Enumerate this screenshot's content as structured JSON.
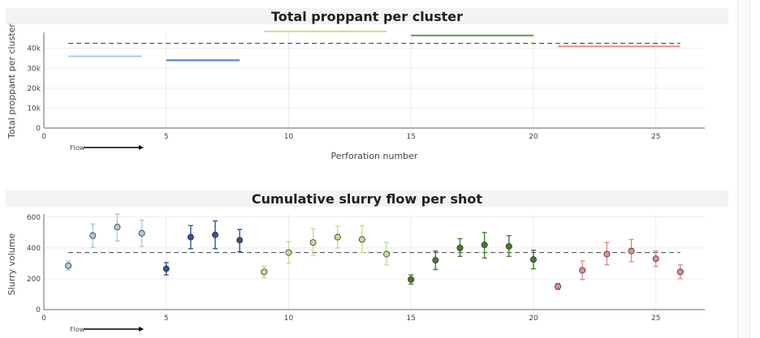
{
  "chart_data": [
    {
      "type": "line",
      "title": "Total proppant per cluster",
      "xlabel": "Perforation number",
      "ylabel": "Total proppant per cluster",
      "xlim": [
        0,
        27
      ],
      "ylim": [
        0,
        48000
      ],
      "xticks": [
        0,
        5,
        10,
        15,
        20,
        25
      ],
      "xtick_labels": [
        "0",
        "5",
        "10",
        "15",
        "20",
        "25"
      ],
      "yticks": [
        0,
        10000,
        20000,
        30000,
        40000
      ],
      "ytick_labels": [
        "0",
        "10k",
        "20k",
        "30k",
        "40k"
      ],
      "reference_line": 42500,
      "flow_label": "Flow",
      "series": [
        {
          "x": [
            1,
            4
          ],
          "values": [
            36000,
            36000
          ],
          "color": "#a8cbe0"
        },
        {
          "x": [
            5,
            8
          ],
          "values": [
            34000,
            34000
          ],
          "color": "#4a78c4"
        },
        {
          "x": [
            9,
            14
          ],
          "values": [
            48500,
            48500
          ],
          "color": "#c2de96"
        },
        {
          "x": [
            15,
            20
          ],
          "values": [
            46500,
            46500
          ],
          "color": "#5aa03c"
        },
        {
          "x": [
            21,
            26
          ],
          "values": [
            41000,
            41000
          ],
          "color": "#e08d8d"
        }
      ],
      "grid": true
    },
    {
      "type": "scatter",
      "title": "Cumulative slurry flow per shot",
      "xlabel": "",
      "ylabel": "Slurry volume",
      "xlim": [
        0,
        27
      ],
      "ylim": [
        0,
        620
      ],
      "xticks": [
        0,
        5,
        10,
        15,
        20,
        25
      ],
      "xtick_labels": [
        "0",
        "5",
        "10",
        "15",
        "20",
        "25"
      ],
      "yticks": [
        0,
        200,
        400,
        600
      ],
      "ytick_labels": [
        "0",
        "200",
        "400",
        "600"
      ],
      "reference_line": 370,
      "flow_label": "Flow",
      "points": [
        {
          "x": 1,
          "y": 285,
          "low": 255,
          "high": 315,
          "color": "#a8cbe0"
        },
        {
          "x": 2,
          "y": 480,
          "low": 405,
          "high": 555,
          "color": "#a8cbe0"
        },
        {
          "x": 3,
          "y": 535,
          "low": 445,
          "high": 620,
          "color": "#a8cbe0"
        },
        {
          "x": 4,
          "y": 495,
          "low": 410,
          "high": 580,
          "color": "#a8cbe0"
        },
        {
          "x": 5,
          "y": 265,
          "low": 225,
          "high": 305,
          "color": "#2f5597"
        },
        {
          "x": 6,
          "y": 470,
          "low": 395,
          "high": 545,
          "color": "#2f5597"
        },
        {
          "x": 7,
          "y": 485,
          "low": 395,
          "high": 575,
          "color": "#2f5597"
        },
        {
          "x": 8,
          "y": 450,
          "low": 375,
          "high": 520,
          "color": "#2f5597"
        },
        {
          "x": 9,
          "y": 245,
          "low": 210,
          "high": 280,
          "color": "#c2de96"
        },
        {
          "x": 10,
          "y": 370,
          "low": 300,
          "high": 440,
          "color": "#c2de96"
        },
        {
          "x": 11,
          "y": 435,
          "low": 350,
          "high": 525,
          "color": "#c2de96"
        },
        {
          "x": 12,
          "y": 470,
          "low": 400,
          "high": 540,
          "color": "#c2de96"
        },
        {
          "x": 13,
          "y": 455,
          "low": 370,
          "high": 545,
          "color": "#c2de96"
        },
        {
          "x": 14,
          "y": 360,
          "low": 290,
          "high": 435,
          "color": "#c2de96"
        },
        {
          "x": 15,
          "y": 195,
          "low": 165,
          "high": 225,
          "color": "#3f7f2c"
        },
        {
          "x": 16,
          "y": 320,
          "low": 260,
          "high": 380,
          "color": "#3f7f2c"
        },
        {
          "x": 17,
          "y": 400,
          "low": 345,
          "high": 460,
          "color": "#3f7f2c"
        },
        {
          "x": 18,
          "y": 420,
          "low": 335,
          "high": 500,
          "color": "#3f7f2c"
        },
        {
          "x": 19,
          "y": 410,
          "low": 345,
          "high": 480,
          "color": "#3f7f2c"
        },
        {
          "x": 20,
          "y": 325,
          "low": 265,
          "high": 385,
          "color": "#3f7f2c"
        },
        {
          "x": 21,
          "y": 150,
          "low": 130,
          "high": 170,
          "color": "#e08d8d"
        },
        {
          "x": 22,
          "y": 255,
          "low": 195,
          "high": 315,
          "color": "#e08d8d"
        },
        {
          "x": 23,
          "y": 360,
          "low": 290,
          "high": 435,
          "color": "#e08d8d"
        },
        {
          "x": 24,
          "y": 380,
          "low": 310,
          "high": 455,
          "color": "#e08d8d"
        },
        {
          "x": 25,
          "y": 330,
          "low": 280,
          "high": 380,
          "color": "#e08d8d"
        },
        {
          "x": 26,
          "y": 245,
          "low": 200,
          "high": 290,
          "color": "#e08d8d"
        }
      ],
      "grid": true
    }
  ]
}
